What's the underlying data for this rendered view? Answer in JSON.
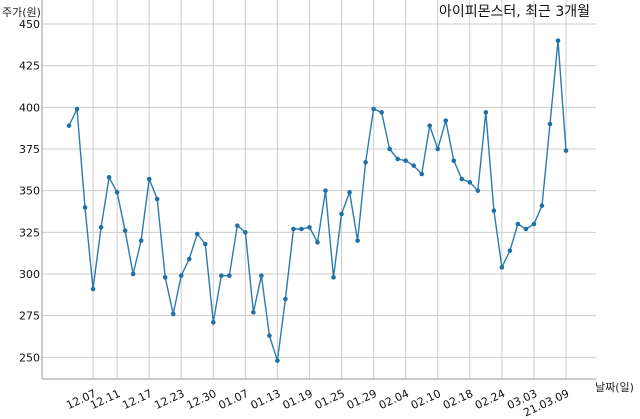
{
  "chart_data": {
    "type": "line",
    "title": "아이피몬스터, 최근 3개월",
    "ylabel": "주가(원)",
    "xlabel": "날짜(일)",
    "ylim": [
      237,
      450
    ],
    "yticks": [
      250,
      275,
      300,
      325,
      350,
      375,
      400,
      425,
      450
    ],
    "xtick_labels": [
      "12.07",
      "12.11",
      "12.17",
      "12.23",
      "12.30",
      "01.07",
      "01.13",
      "01.19",
      "01.25",
      "01.29",
      "02.04",
      "02.10",
      "02.18",
      "02.24",
      "03.03",
      "21.03.09"
    ],
    "xtick_positions": [
      3,
      6,
      10,
      14,
      18,
      22,
      26,
      30,
      34,
      38,
      42,
      46,
      50,
      54,
      58,
      62
    ],
    "grid": true,
    "colors": {
      "line": "#2b7bb0",
      "marker": "#2070a8",
      "grid": "#cccccc"
    },
    "series": [
      {
        "values": [
          389,
          399,
          340,
          291,
          328,
          358,
          349,
          326,
          300,
          320,
          357,
          345,
          298,
          276,
          299,
          309,
          324,
          318,
          271,
          299,
          299,
          329,
          325,
          277,
          299,
          263,
          248,
          285,
          327,
          327,
          328,
          319,
          350,
          298,
          336,
          349,
          320,
          367,
          399,
          397,
          375,
          369,
          368,
          365,
          360,
          389,
          375,
          392,
          368,
          357,
          355,
          350,
          397,
          338,
          304,
          314,
          330,
          327,
          330,
          341,
          390,
          440,
          374
        ]
      }
    ]
  }
}
